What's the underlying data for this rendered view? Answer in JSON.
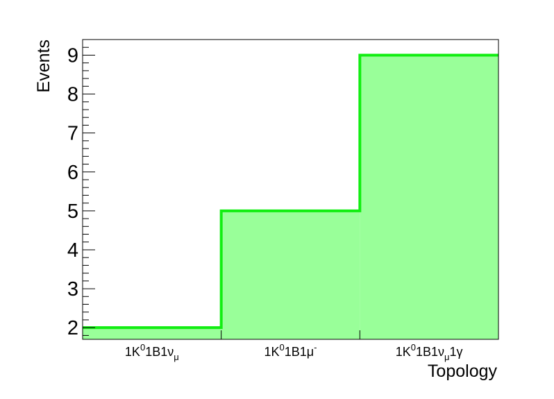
{
  "chart_data": {
    "type": "bar",
    "style": "step-histogram",
    "categories": [
      "1K^{0}1B1ν_{μ}",
      "1K^{0}1B1μ^{-}",
      "1K^{0}1B1ν_{μ}1γ"
    ],
    "category_parts": [
      [
        {
          "t": "1K"
        },
        {
          "t": "0",
          "s": "sup"
        },
        {
          "t": "1B1ν"
        },
        {
          "t": "μ",
          "s": "sub"
        }
      ],
      [
        {
          "t": "1K"
        },
        {
          "t": "0",
          "s": "sup"
        },
        {
          "t": "1B1μ"
        },
        {
          "t": "-",
          "s": "sup"
        }
      ],
      [
        {
          "t": "1K"
        },
        {
          "t": "0",
          "s": "sup"
        },
        {
          "t": "1B1ν"
        },
        {
          "t": "μ",
          "s": "sub"
        },
        {
          "t": "1γ"
        }
      ]
    ],
    "values": [
      2,
      5,
      9
    ],
    "xlabel": "Topology",
    "ylabel": "Events",
    "ylim": [
      1.7,
      9.4
    ],
    "yticks": [
      2,
      3,
      4,
      5,
      6,
      7,
      8,
      9
    ],
    "grid": false,
    "colors": {
      "fill": "#99ff99",
      "line": "#11ee11",
      "axis": "#000000"
    }
  }
}
